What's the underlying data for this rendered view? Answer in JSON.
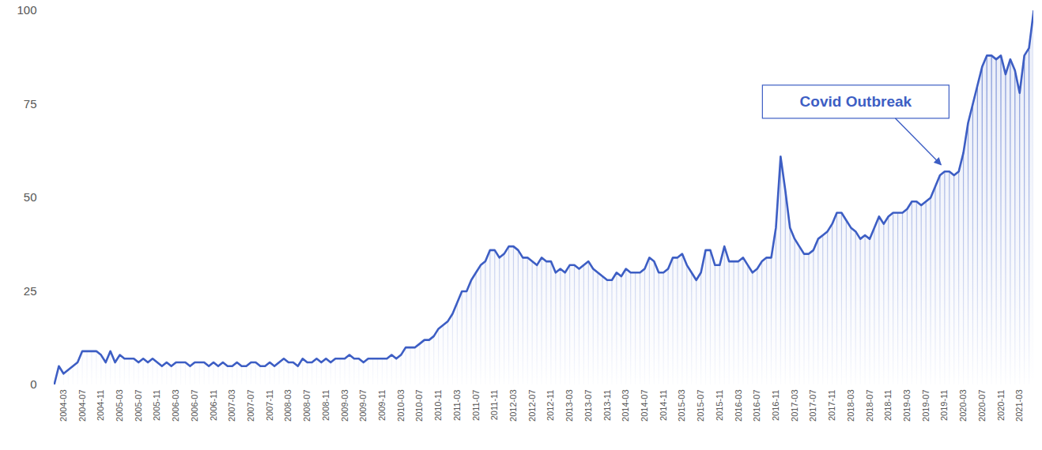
{
  "chart_data": {
    "type": "line",
    "color": "#3d5ec4",
    "categories": [
      null,
      null,
      "2004-03",
      null,
      null,
      null,
      "2004-07",
      null,
      null,
      null,
      "2004-11",
      null,
      null,
      null,
      "2005-03",
      null,
      null,
      null,
      "2005-07",
      null,
      null,
      null,
      "2005-11",
      null,
      null,
      null,
      "2006-03",
      null,
      null,
      null,
      "2006-07",
      null,
      null,
      null,
      "2006-11",
      null,
      null,
      null,
      "2007-03",
      null,
      null,
      null,
      "2007-07",
      null,
      null,
      null,
      "2007-11",
      null,
      null,
      null,
      "2008-03",
      null,
      null,
      null,
      "2008-07",
      null,
      null,
      null,
      "2008-11",
      null,
      null,
      null,
      "2009-03",
      null,
      null,
      null,
      "2009-07",
      null,
      null,
      null,
      "2009-11",
      null,
      null,
      null,
      "2010-03",
      null,
      null,
      null,
      "2010-07",
      null,
      null,
      null,
      "2010-11",
      null,
      null,
      null,
      "2011-03",
      null,
      null,
      null,
      "2011-07",
      null,
      null,
      null,
      "2011-11",
      null,
      null,
      null,
      "2012-03",
      null,
      null,
      null,
      "2012-07",
      null,
      null,
      null,
      "2012-11",
      null,
      null,
      null,
      "2013-03",
      null,
      null,
      null,
      "2013-07",
      null,
      null,
      null,
      "2013-11",
      null,
      null,
      null,
      "2014-03",
      null,
      null,
      null,
      "2014-07",
      null,
      null,
      null,
      "2014-11",
      null,
      null,
      null,
      "2015-03",
      null,
      null,
      null,
      "2015-07",
      null,
      null,
      null,
      "2015-11",
      null,
      null,
      null,
      "2016-03",
      null,
      null,
      null,
      "2016-07",
      null,
      null,
      null,
      "2016-11",
      null,
      null,
      null,
      "2017-03",
      null,
      null,
      null,
      "2017-07",
      null,
      null,
      null,
      "2017-11",
      null,
      null,
      null,
      "2018-03",
      null,
      null,
      null,
      "2018-07",
      null,
      null,
      null,
      "2018-11",
      null,
      null,
      null,
      "2019-03",
      null,
      null,
      null,
      "2019-07",
      null,
      null,
      null,
      "2019-11",
      null,
      null,
      null,
      "2020-03",
      null,
      null,
      null,
      "2020-07",
      null,
      null,
      null,
      "2020-11",
      null,
      null,
      null,
      "2021-03",
      null,
      null,
      null
    ],
    "values": [
      0,
      5,
      3,
      4,
      5,
      6,
      9,
      9,
      9,
      9,
      8,
      6,
      9,
      6,
      8,
      7,
      7,
      7,
      6,
      7,
      6,
      7,
      6,
      5,
      6,
      5,
      6,
      6,
      6,
      5,
      6,
      6,
      6,
      5,
      6,
      5,
      6,
      5,
      5,
      6,
      5,
      5,
      6,
      6,
      5,
      5,
      6,
      5,
      6,
      7,
      6,
      6,
      5,
      7,
      6,
      6,
      7,
      6,
      7,
      6,
      7,
      7,
      7,
      8,
      7,
      7,
      6,
      7,
      7,
      7,
      7,
      7,
      8,
      7,
      8,
      10,
      10,
      10,
      11,
      12,
      12,
      13,
      15,
      16,
      17,
      19,
      22,
      25,
      25,
      28,
      30,
      32,
      33,
      36,
      36,
      34,
      35,
      37,
      37,
      36,
      34,
      34,
      33,
      32,
      34,
      33,
      33,
      30,
      31,
      30,
      32,
      32,
      31,
      32,
      33,
      31,
      30,
      29,
      28,
      28,
      30,
      29,
      31,
      30,
      30,
      30,
      31,
      34,
      33,
      30,
      30,
      31,
      34,
      34,
      35,
      32,
      30,
      28,
      30,
      36,
      36,
      32,
      32,
      37,
      33,
      33,
      33,
      34,
      32,
      30,
      31,
      33,
      34,
      34,
      42,
      61,
      52,
      42,
      39,
      37,
      35,
      35,
      36,
      39,
      40,
      41,
      43,
      46,
      46,
      44,
      42,
      41,
      39,
      40,
      39,
      42,
      45,
      43,
      45,
      46,
      46,
      46,
      47,
      49,
      49,
      48,
      49,
      50,
      53,
      56,
      57,
      57,
      56,
      57,
      62,
      70,
      75,
      80,
      85,
      88,
      88,
      87,
      88,
      83,
      87,
      84,
      78,
      88,
      90,
      100
    ],
    "ylim": [
      0,
      100
    ],
    "yticks": [
      0,
      25,
      50,
      75,
      100
    ],
    "grid": false,
    "annotations": [
      {
        "text": "Covid Outbreak",
        "x": "2019-11"
      }
    ]
  }
}
